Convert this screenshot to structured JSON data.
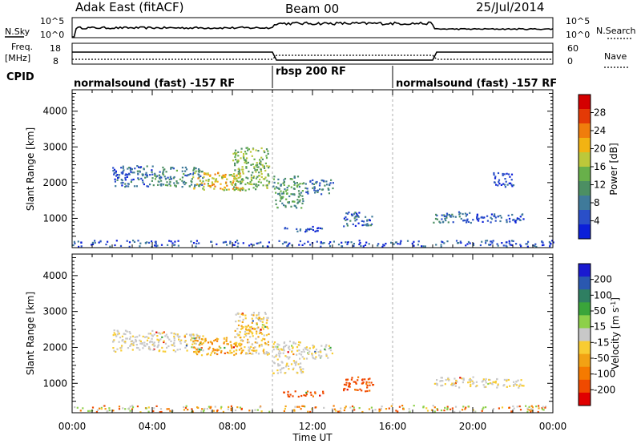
{
  "header": {
    "station": "Adak East (fitACF)",
    "beam": "Beam 00",
    "date": "25/Jul/2014"
  },
  "noise_panel": {
    "left_label": "N.Sky",
    "right_label": "N.Search",
    "left_ticks": [
      "10^5",
      "10^0"
    ],
    "right_ticks": [
      "10^5",
      "10^0"
    ]
  },
  "freq_panel": {
    "left_label_1": "Freq.",
    "left_label_2": "[MHz]",
    "right_label": "Nave",
    "left_ticks": [
      "18",
      "8"
    ],
    "right_ticks": [
      "60",
      "0"
    ]
  },
  "cpid_panel": {
    "label": "CPID",
    "segments": [
      {
        "name": "normalsound (fast) -157 RF",
        "start_h": 0,
        "end_h": 10
      },
      {
        "name": "rbsp 200 RF",
        "start_h": 10,
        "end_h": 16
      },
      {
        "name": "normalsound (fast) -157 RF",
        "start_h": 16,
        "end_h": 24
      }
    ]
  },
  "colors": {
    "power": [
      "#0b1fd9",
      "#2a4fc8",
      "#3f7a9a",
      "#4c8f63",
      "#68b04a",
      "#bcc83a",
      "#f2b312",
      "#f07d0c",
      "#e43a06",
      "#d40000"
    ],
    "velocity": [
      "#e00000",
      "#f04a00",
      "#f57a00",
      "#f2a214",
      "#f8cc32",
      "#c8c8c8",
      "#8dd04a",
      "#3aa53a",
      "#2f7f62",
      "#2a58b0",
      "#1a1ad0"
    ]
  },
  "chart_data": [
    {
      "type": "heatmap",
      "title": "Power",
      "xlabel": "Time UT",
      "ylabel": "Slant Range [km]",
      "xlim": [
        0,
        24
      ],
      "ylim": [
        180,
        4600
      ],
      "x_ticks": [
        "00:00",
        "04:00",
        "08:00",
        "12:00",
        "16:00",
        "20:00",
        "00:00"
      ],
      "y_ticks": [
        "1000",
        "2000",
        "3000",
        "4000"
      ],
      "colorbar": {
        "label": "Power [dB]",
        "range": [
          0,
          32
        ],
        "ticks": [
          "4",
          "8",
          "12",
          "16",
          "20",
          "24",
          "28"
        ]
      },
      "features": [
        {
          "t0": 2.0,
          "t1": 4.0,
          "r0": 1900,
          "r1": 2500,
          "level": 0.15
        },
        {
          "t0": 4.0,
          "t1": 6.5,
          "r0": 1900,
          "r1": 2450,
          "level": 0.25
        },
        {
          "t0": 6.0,
          "t1": 8.5,
          "r0": 1800,
          "r1": 2300,
          "level": 0.55
        },
        {
          "t0": 8.0,
          "t1": 9.8,
          "r0": 1800,
          "r1": 3000,
          "level": 0.4
        },
        {
          "t0": 10.0,
          "t1": 11.5,
          "r0": 1300,
          "r1": 2200,
          "level": 0.3
        },
        {
          "t0": 11.5,
          "t1": 13.0,
          "r0": 1700,
          "r1": 2100,
          "level": 0.2
        },
        {
          "t0": 10.5,
          "t1": 12.5,
          "r0": 650,
          "r1": 800,
          "level": 0.1
        },
        {
          "t0": 13.5,
          "t1": 15.0,
          "r0": 800,
          "r1": 1200,
          "level": 0.15
        },
        {
          "t0": 18.0,
          "t1": 20.0,
          "r0": 900,
          "r1": 1200,
          "level": 0.2
        },
        {
          "t0": 20.0,
          "t1": 22.5,
          "r0": 900,
          "r1": 1150,
          "level": 0.1
        },
        {
          "t0": 21.0,
          "t1": 22.0,
          "r0": 1900,
          "r1": 2300,
          "level": 0.05
        }
      ]
    },
    {
      "type": "heatmap",
      "title": "Velocity",
      "xlabel": "Time UT",
      "ylabel": "Slant Range [km]",
      "xlim": [
        0,
        24
      ],
      "ylim": [
        180,
        4600
      ],
      "x_ticks": [
        "00:00",
        "04:00",
        "08:00",
        "12:00",
        "16:00",
        "20:00",
        "00:00"
      ],
      "y_ticks": [
        "1000",
        "2000",
        "3000",
        "4000"
      ],
      "colorbar": {
        "label": "Velocity [m s^-1]",
        "ticks": [
          "200",
          "100",
          "50",
          "15",
          "-15",
          "-50",
          "-100",
          "-200"
        ]
      },
      "features": [
        {
          "t0": 2.0,
          "t1": 4.0,
          "r0": 1900,
          "r1": 2500,
          "v": 0
        },
        {
          "t0": 4.0,
          "t1": 6.5,
          "r0": 1900,
          "r1": 2450,
          "v": 0
        },
        {
          "t0": 6.0,
          "t1": 8.5,
          "r0": 1800,
          "r1": 2300,
          "v": -20
        },
        {
          "t0": 8.0,
          "t1": 9.8,
          "r0": 1800,
          "r1": 3000,
          "v": -10
        },
        {
          "t0": 10.0,
          "t1": 11.5,
          "r0": 1300,
          "r1": 2200,
          "v": 0
        },
        {
          "t0": 11.5,
          "t1": 13.0,
          "r0": 1700,
          "r1": 2100,
          "v": 0
        },
        {
          "t0": 10.5,
          "t1": 12.5,
          "r0": 650,
          "r1": 800,
          "v": -60
        },
        {
          "t0": 13.5,
          "t1": 15.0,
          "r0": 800,
          "r1": 1200,
          "v": -60
        },
        {
          "t0": 18.0,
          "t1": 20.0,
          "r0": 900,
          "r1": 1200,
          "v": 0
        },
        {
          "t0": 20.0,
          "t1": 22.5,
          "r0": 900,
          "r1": 1150,
          "v": 0
        }
      ]
    }
  ]
}
